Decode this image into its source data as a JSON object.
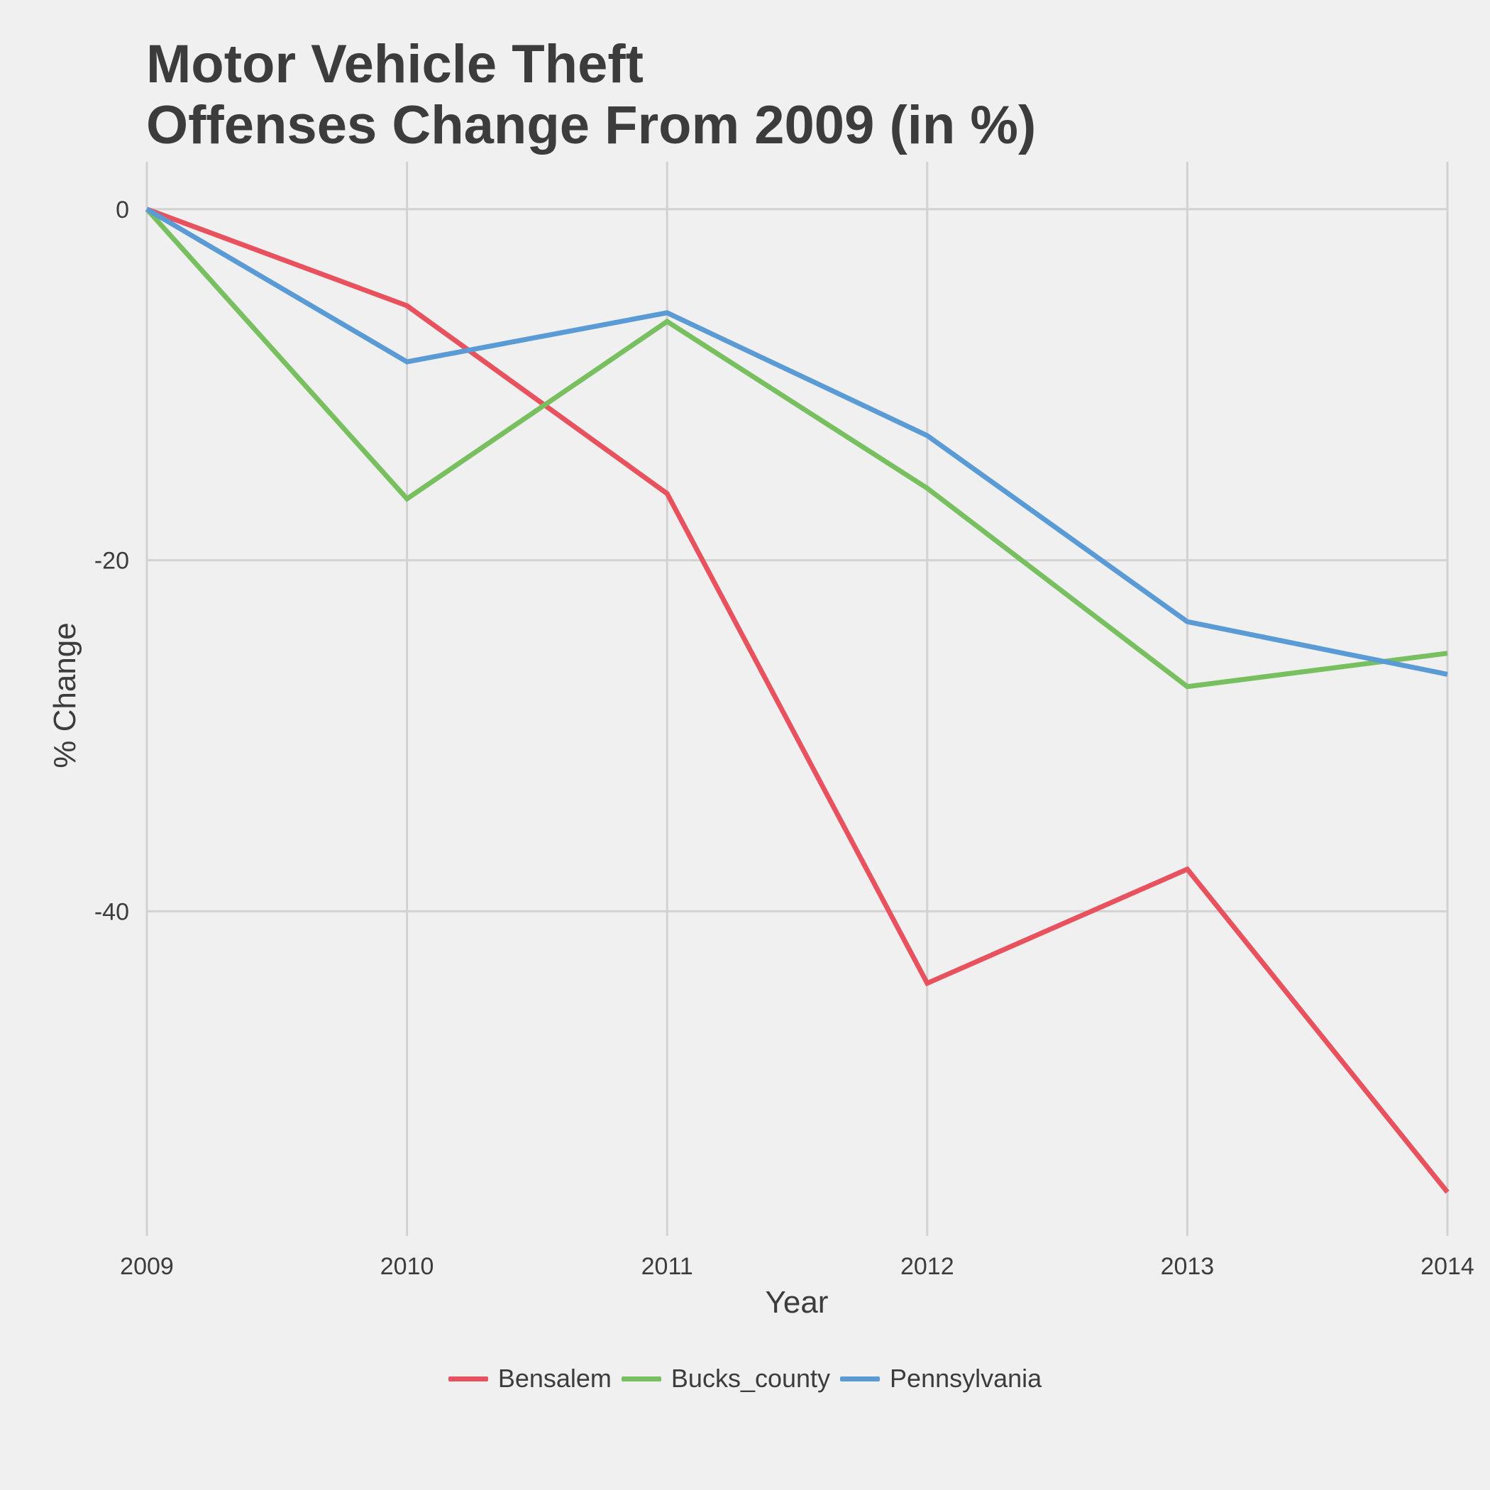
{
  "chart_data": {
    "type": "line",
    "title": [
      "Motor Vehicle Theft",
      "Offenses Change From 2009 (in %)"
    ],
    "xlabel": "Year",
    "ylabel": "% Change",
    "x": [
      2009,
      2010,
      2011,
      2012,
      2013,
      2014
    ],
    "xlim": [
      2009,
      2014
    ],
    "ylim": [
      -58.5,
      2.7
    ],
    "yticks": [
      0,
      -20,
      -40
    ],
    "ytick_labels": [
      "0",
      "-20",
      "-40"
    ],
    "grid": true,
    "legend_position": "bottom",
    "series": [
      {
        "name": "Bensalem",
        "color": "#e8525e",
        "values": [
          0,
          -5.5,
          -16.2,
          -44.1,
          -37.6,
          -56
        ]
      },
      {
        "name": "Bucks_county",
        "color": "#78bf5f",
        "values": [
          0,
          -16.5,
          -6.4,
          -15.9,
          -27.2,
          -25.3
        ]
      },
      {
        "name": "Pennsylvania",
        "color": "#5a9bd5",
        "values": [
          0,
          -8.7,
          -5.9,
          -12.9,
          -23.5,
          -26.5
        ]
      }
    ]
  }
}
